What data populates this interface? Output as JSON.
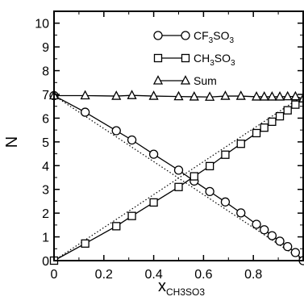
{
  "chart_data": {
    "type": "line",
    "xlabel": "x",
    "xlabel_subscript": "CH3SO3",
    "ylabel": "N",
    "xlim": [
      0,
      1
    ],
    "ylim": [
      0,
      10.5
    ],
    "xticks": [
      "0",
      "0.2",
      "0.4",
      "0.6",
      "0.8"
    ],
    "yticks": [
      "0",
      "1",
      "2",
      "3",
      "4",
      "5",
      "6",
      "7",
      "8",
      "9",
      "10"
    ],
    "grid": false,
    "legend_position": "top-right",
    "series": [
      {
        "name": "CF3SO3",
        "legend_main": "CF",
        "legend_sub1": "3",
        "legend_mid": "SO",
        "legend_sub2": "3",
        "marker": "circle",
        "x": [
          0,
          0.125,
          0.25,
          0.3125,
          0.4,
          0.5,
          0.5625,
          0.625,
          0.6875,
          0.75,
          0.8125,
          0.84375,
          0.875,
          0.90625,
          0.9375,
          0.96875,
          1.0
        ],
        "y": [
          6.95,
          6.25,
          5.47,
          5.08,
          4.48,
          3.81,
          3.35,
          2.91,
          2.47,
          2.01,
          1.53,
          1.3,
          1.05,
          0.82,
          0.59,
          0.34,
          0
        ]
      },
      {
        "name": "CH3SO3",
        "legend_main": "CH",
        "legend_sub1": "3",
        "legend_mid": "SO",
        "legend_sub2": "3",
        "marker": "square",
        "x": [
          0,
          0.125,
          0.25,
          0.3125,
          0.4,
          0.5,
          0.5625,
          0.625,
          0.6875,
          0.75,
          0.8125,
          0.84375,
          0.875,
          0.90625,
          0.9375,
          0.96875
        ],
        "y": [
          0,
          0.72,
          1.45,
          1.88,
          2.45,
          3.1,
          3.55,
          3.98,
          4.46,
          4.92,
          5.37,
          5.6,
          5.85,
          6.08,
          6.33,
          6.57
        ]
      },
      {
        "name": "Sum",
        "legend_main": "Sum",
        "marker": "triangle",
        "x": [
          0,
          0.125,
          0.25,
          0.3125,
          0.4,
          0.5,
          0.5625,
          0.625,
          0.6875,
          0.75,
          0.8125,
          0.84375,
          0.875,
          0.90625,
          0.9375,
          0.96875,
          1.0
        ],
        "y": [
          6.95,
          6.95,
          6.93,
          6.96,
          6.93,
          6.91,
          6.9,
          6.89,
          6.93,
          6.93,
          6.9,
          6.9,
          6.9,
          6.9,
          6.91,
          6.91,
          6.82
        ]
      }
    ],
    "reference_lines": [
      {
        "style": "dotted",
        "x": [
          0,
          1
        ],
        "y": [
          0,
          6.95
        ]
      },
      {
        "style": "dotted",
        "x": [
          0,
          1
        ],
        "y": [
          6.95,
          0
        ]
      }
    ]
  }
}
